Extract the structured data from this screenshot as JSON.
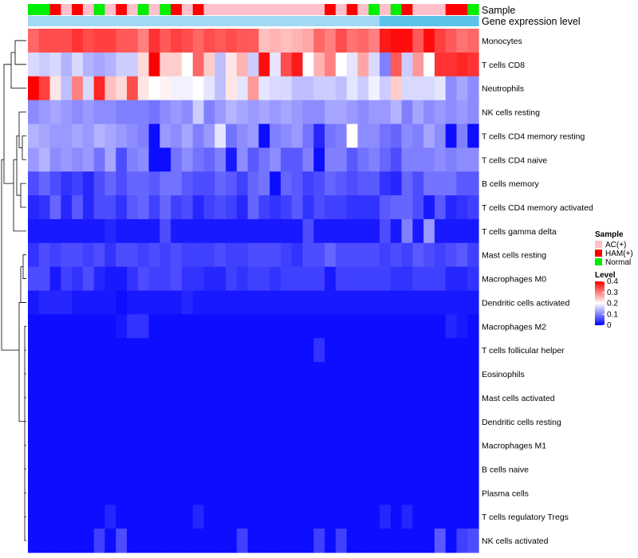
{
  "chart_data": {
    "type": "heatmap",
    "rows": [
      "Monocytes",
      "T cells CD8",
      "Neutrophils",
      "NK cells resting",
      "T cells CD4 memory resting",
      "T cells CD4 naive",
      "B cells memory",
      "T cells CD4 memory activated",
      "T cells gamma delta",
      "Mast cells resting",
      "Macrophages M0",
      "Dendritic cells activated",
      "Macrophages M2",
      "T cells follicular helper",
      "Eosinophils",
      "Mast cells activated",
      "Dendritic cells resting",
      "Macrophages M1",
      "B cells naive",
      "Plasma cells",
      "T cells regulatory  Tregs",
      "NK cells activated"
    ],
    "annotations": [
      {
        "name": "Sample"
      },
      {
        "name": "Gene expression level"
      }
    ],
    "sample_groups": [
      "N",
      "N",
      "H",
      "A",
      "H",
      "A",
      "N",
      "A",
      "H",
      "A",
      "N",
      "A",
      "N",
      "H",
      "A",
      "H",
      "A",
      "A",
      "A",
      "A",
      "A",
      "A",
      "A",
      "A",
      "A",
      "A",
      "A",
      "H",
      "A",
      "H",
      "A",
      "N",
      "A",
      "N",
      "H",
      "A",
      "A",
      "A",
      "H",
      "H",
      "N"
    ],
    "gene_level_groups": [
      0,
      0,
      0,
      0,
      0,
      0,
      0,
      0,
      0,
      0,
      0,
      0,
      0,
      0,
      0,
      0,
      0,
      0,
      0,
      0,
      0,
      0,
      0,
      0,
      0,
      0,
      0,
      0,
      0,
      0,
      0,
      0,
      1,
      1,
      1,
      1,
      1,
      1,
      1,
      1,
      1
    ],
    "values": [
      [
        0.32,
        0.34,
        0.34,
        0.34,
        0.36,
        0.34,
        0.35,
        0.35,
        0.33,
        0.33,
        0.3,
        0.36,
        0.33,
        0.35,
        0.34,
        0.32,
        0.34,
        0.33,
        0.34,
        0.33,
        0.33,
        0.25,
        0.26,
        0.25,
        0.26,
        0.27,
        0.32,
        0.3,
        0.34,
        0.31,
        0.32,
        0.3,
        0.38,
        0.39,
        0.39,
        0.33,
        0.39,
        0.35,
        0.33,
        0.31,
        0.32
      ],
      [
        0.17,
        0.16,
        0.17,
        0.14,
        0.17,
        0.14,
        0.13,
        0.14,
        0.16,
        0.16,
        0.23,
        0.4,
        0.24,
        0.24,
        0.2,
        0.32,
        0.24,
        0.15,
        0.22,
        0.26,
        0.16,
        0.39,
        0.18,
        0.34,
        0.38,
        0.2,
        0.26,
        0.3,
        0.2,
        0.18,
        0.27,
        0.17,
        0.1,
        0.33,
        0.16,
        0.28,
        0.2,
        0.36,
        0.36,
        0.37,
        0.36
      ],
      [
        0.4,
        0.35,
        0.22,
        0.15,
        0.3,
        0.17,
        0.37,
        0.25,
        0.23,
        0.34,
        0.22,
        0.2,
        0.21,
        0.19,
        0.19,
        0.2,
        0.18,
        0.15,
        0.22,
        0.18,
        0.28,
        0.18,
        0.17,
        0.17,
        0.15,
        0.15,
        0.16,
        0.16,
        0.15,
        0.18,
        0.16,
        0.19,
        0.16,
        0.24,
        0.17,
        0.17,
        0.17,
        0.18,
        0.11,
        0.13,
        0.11
      ],
      [
        0.11,
        0.12,
        0.13,
        0.12,
        0.11,
        0.12,
        0.11,
        0.11,
        0.1,
        0.1,
        0.1,
        0.09,
        0.11,
        0.12,
        0.11,
        0.16,
        0.1,
        0.12,
        0.14,
        0.13,
        0.12,
        0.13,
        0.12,
        0.13,
        0.12,
        0.11,
        0.11,
        0.13,
        0.13,
        0.12,
        0.11,
        0.12,
        0.12,
        0.14,
        0.1,
        0.13,
        0.11,
        0.12,
        0.11,
        0.12,
        0.11
      ],
      [
        0.14,
        0.13,
        0.12,
        0.12,
        0.13,
        0.12,
        0.14,
        0.13,
        0.12,
        0.11,
        0.1,
        0.01,
        0.12,
        0.11,
        0.13,
        0.1,
        0.12,
        0.18,
        0.09,
        0.11,
        0.12,
        0.01,
        0.1,
        0.11,
        0.12,
        0.09,
        0.03,
        0.09,
        0.1,
        0.2,
        0.11,
        0.11,
        0.09,
        0.08,
        0.11,
        0.1,
        0.13,
        0.11,
        0.01,
        0.1,
        0.01
      ],
      [
        0.12,
        0.14,
        0.11,
        0.12,
        0.11,
        0.12,
        0.09,
        0.13,
        0.06,
        0.1,
        0.11,
        0.01,
        0.01,
        0.09,
        0.11,
        0.09,
        0.08,
        0.1,
        0.02,
        0.11,
        0.07,
        0.09,
        0.11,
        0.07,
        0.07,
        0.1,
        0.01,
        0.1,
        0.1,
        0.07,
        0.09,
        0.1,
        0.08,
        0.06,
        0.1,
        0.1,
        0.1,
        0.11,
        0.1,
        0.11,
        0.11
      ],
      [
        0.06,
        0.08,
        0.06,
        0.04,
        0.05,
        0.03,
        0.06,
        0.08,
        0.06,
        0.08,
        0.08,
        0.07,
        0.09,
        0.09,
        0.07,
        0.06,
        0.06,
        0.08,
        0.07,
        0.05,
        0.08,
        0.09,
        0.01,
        0.08,
        0.07,
        0.05,
        0.06,
        0.08,
        0.07,
        0.06,
        0.07,
        0.07,
        0.04,
        0.03,
        0.08,
        0.06,
        0.09,
        0.09,
        0.09,
        0.07,
        0.07
      ],
      [
        0.03,
        0.04,
        0.08,
        0.03,
        0.07,
        0.03,
        0.06,
        0.06,
        0.04,
        0.07,
        0.08,
        0.05,
        0.08,
        0.05,
        0.06,
        0.03,
        0.05,
        0.06,
        0.05,
        0.03,
        0.08,
        0.05,
        0.04,
        0.05,
        0.07,
        0.04,
        0.06,
        0.05,
        0.05,
        0.04,
        0.04,
        0.04,
        0.07,
        0.08,
        0.08,
        0.06,
        0.02,
        0.07,
        0.03,
        0.04,
        0.05
      ],
      [
        0.02,
        0.02,
        0.02,
        0.02,
        0.02,
        0.02,
        0.02,
        0.03,
        0.02,
        0.02,
        0.02,
        0.02,
        0.06,
        0.02,
        0.02,
        0.02,
        0.02,
        0.02,
        0.02,
        0.02,
        0.02,
        0.02,
        0.02,
        0.02,
        0.02,
        0.06,
        0.02,
        0.02,
        0.02,
        0.02,
        0.02,
        0.02,
        0.06,
        0.02,
        0.1,
        0.02,
        0.12,
        0.02,
        0.02,
        0.02,
        0.02
      ],
      [
        0.04,
        0.06,
        0.05,
        0.06,
        0.06,
        0.05,
        0.06,
        0.04,
        0.06,
        0.06,
        0.05,
        0.06,
        0.05,
        0.06,
        0.05,
        0.05,
        0.05,
        0.06,
        0.05,
        0.05,
        0.06,
        0.06,
        0.06,
        0.05,
        0.04,
        0.06,
        0.06,
        0.08,
        0.06,
        0.06,
        0.06,
        0.06,
        0.05,
        0.06,
        0.05,
        0.07,
        0.06,
        0.05,
        0.06,
        0.07,
        0.05
      ],
      [
        0.06,
        0.06,
        0.02,
        0.05,
        0.04,
        0.06,
        0.03,
        0.02,
        0.02,
        0.04,
        0.06,
        0.05,
        0.05,
        0.06,
        0.04,
        0.04,
        0.03,
        0.03,
        0.05,
        0.04,
        0.05,
        0.05,
        0.04,
        0.05,
        0.05,
        0.05,
        0.05,
        0.02,
        0.05,
        0.05,
        0.05,
        0.05,
        0.05,
        0.04,
        0.04,
        0.05,
        0.05,
        0.05,
        0.03,
        0.03,
        0.04
      ],
      [
        0.02,
        0.03,
        0.03,
        0.03,
        0.02,
        0.02,
        0.02,
        0.02,
        0.01,
        0.02,
        0.02,
        0.02,
        0.02,
        0.02,
        0.03,
        0.02,
        0.02,
        0.02,
        0.02,
        0.02,
        0.02,
        0.02,
        0.02,
        0.02,
        0.02,
        0.02,
        0.02,
        0.02,
        0.02,
        0.02,
        0.02,
        0.02,
        0.02,
        0.02,
        0.02,
        0.02,
        0.02,
        0.02,
        0.02,
        0.02,
        0.02
      ],
      [
        0.01,
        0.01,
        0.01,
        0.01,
        0.01,
        0.01,
        0.01,
        0.01,
        0.02,
        0.04,
        0.04,
        0.01,
        0.01,
        0.01,
        0.01,
        0.01,
        0.01,
        0.01,
        0.01,
        0.01,
        0.01,
        0.01,
        0.01,
        0.01,
        0.01,
        0.01,
        0.01,
        0.01,
        0.01,
        0.01,
        0.01,
        0.01,
        0.01,
        0.01,
        0.01,
        0.01,
        0.01,
        0.01,
        0.03,
        0.02,
        0.01
      ],
      [
        0.01,
        0.01,
        0.01,
        0.01,
        0.01,
        0.01,
        0.01,
        0.01,
        0.01,
        0.01,
        0.01,
        0.01,
        0.01,
        0.01,
        0.01,
        0.01,
        0.01,
        0.01,
        0.01,
        0.01,
        0.01,
        0.01,
        0.01,
        0.01,
        0.01,
        0.01,
        0.04,
        0.01,
        0.01,
        0.01,
        0.01,
        0.01,
        0.01,
        0.01,
        0.01,
        0.01,
        0.01,
        0.01,
        0.01,
        0.01,
        0.01
      ],
      [
        0.01,
        0.01,
        0.01,
        0.01,
        0.01,
        0.01,
        0.01,
        0.01,
        0.01,
        0.01,
        0.01,
        0.01,
        0.01,
        0.01,
        0.01,
        0.01,
        0.01,
        0.01,
        0.01,
        0.01,
        0.01,
        0.01,
        0.01,
        0.01,
        0.01,
        0.01,
        0.01,
        0.01,
        0.01,
        0.01,
        0.01,
        0.01,
        0.01,
        0.01,
        0.01,
        0.01,
        0.01,
        0.01,
        0.01,
        0.01,
        0.01
      ],
      [
        0.01,
        0.01,
        0.01,
        0.01,
        0.01,
        0.01,
        0.01,
        0.01,
        0.01,
        0.01,
        0.01,
        0.01,
        0.01,
        0.01,
        0.01,
        0.01,
        0.01,
        0.01,
        0.01,
        0.01,
        0.01,
        0.01,
        0.01,
        0.01,
        0.01,
        0.01,
        0.01,
        0.01,
        0.01,
        0.01,
        0.01,
        0.01,
        0.01,
        0.01,
        0.01,
        0.01,
        0.01,
        0.01,
        0.01,
        0.01,
        0.01
      ],
      [
        0.01,
        0.01,
        0.01,
        0.01,
        0.01,
        0.01,
        0.01,
        0.01,
        0.01,
        0.01,
        0.01,
        0.01,
        0.01,
        0.01,
        0.01,
        0.01,
        0.01,
        0.01,
        0.01,
        0.01,
        0.01,
        0.01,
        0.01,
        0.01,
        0.01,
        0.01,
        0.01,
        0.01,
        0.01,
        0.01,
        0.01,
        0.01,
        0.01,
        0.01,
        0.01,
        0.01,
        0.01,
        0.01,
        0.01,
        0.01,
        0.01
      ],
      [
        0.01,
        0.01,
        0.01,
        0.01,
        0.01,
        0.01,
        0.01,
        0.01,
        0.01,
        0.01,
        0.01,
        0.01,
        0.01,
        0.01,
        0.01,
        0.01,
        0.01,
        0.01,
        0.01,
        0.01,
        0.01,
        0.01,
        0.01,
        0.01,
        0.01,
        0.01,
        0.01,
        0.01,
        0.01,
        0.01,
        0.01,
        0.01,
        0.01,
        0.01,
        0.01,
        0.01,
        0.01,
        0.01,
        0.01,
        0.01,
        0.01
      ],
      [
        0.01,
        0.01,
        0.01,
        0.01,
        0.01,
        0.01,
        0.01,
        0.01,
        0.01,
        0.01,
        0.01,
        0.01,
        0.01,
        0.01,
        0.01,
        0.01,
        0.01,
        0.01,
        0.01,
        0.01,
        0.01,
        0.01,
        0.01,
        0.01,
        0.01,
        0.01,
        0.01,
        0.01,
        0.01,
        0.01,
        0.01,
        0.01,
        0.01,
        0.01,
        0.01,
        0.01,
        0.01,
        0.01,
        0.01,
        0.01,
        0.01
      ],
      [
        0.01,
        0.01,
        0.01,
        0.01,
        0.01,
        0.01,
        0.01,
        0.01,
        0.01,
        0.01,
        0.01,
        0.01,
        0.01,
        0.01,
        0.01,
        0.01,
        0.01,
        0.01,
        0.01,
        0.01,
        0.01,
        0.01,
        0.01,
        0.01,
        0.01,
        0.01,
        0.01,
        0.01,
        0.01,
        0.01,
        0.01,
        0.01,
        0.01,
        0.01,
        0.01,
        0.01,
        0.01,
        0.01,
        0.01,
        0.01,
        0.01
      ],
      [
        0.01,
        0.01,
        0.01,
        0.01,
        0.01,
        0.01,
        0.01,
        0.03,
        0.01,
        0.01,
        0.01,
        0.01,
        0.01,
        0.01,
        0.01,
        0.03,
        0.01,
        0.01,
        0.01,
        0.01,
        0.01,
        0.01,
        0.01,
        0.01,
        0.01,
        0.01,
        0.01,
        0.01,
        0.01,
        0.01,
        0.01,
        0.01,
        0.03,
        0.01,
        0.03,
        0.01,
        0.01,
        0.01,
        0.01,
        0.01,
        0.01
      ],
      [
        0.01,
        0.01,
        0.01,
        0.01,
        0.01,
        0.01,
        0.05,
        0.01,
        0.06,
        0.01,
        0.01,
        0.01,
        0.01,
        0.01,
        0.01,
        0.01,
        0.01,
        0.01,
        0.01,
        0.05,
        0.01,
        0.01,
        0.01,
        0.01,
        0.01,
        0.01,
        0.05,
        0.01,
        0.05,
        0.01,
        0.01,
        0.01,
        0.01,
        0.01,
        0.01,
        0.01,
        0.01,
        0.07,
        0.01,
        0.05,
        0.06
      ]
    ],
    "color_scale": {
      "min": 0,
      "max": 0.4,
      "low": "#0000ff",
      "mid": "#ffffff",
      "high": "#ff0000",
      "mid_value": 0.2
    },
    "legend": {
      "sample": {
        "title": "Sample",
        "entries": [
          {
            "label": "AC(+)",
            "color": "#ffc0cb"
          },
          {
            "label": "HAM(+)",
            "color": "#ff0000"
          },
          {
            "label": "Normal",
            "color": "#00ee00"
          }
        ]
      },
      "level": {
        "title": "Level",
        "ticks": [
          0.4,
          0.3,
          0.2,
          0.1,
          0
        ]
      }
    },
    "gene_level_colors": [
      "#a3d8f4",
      "#5bc3ea"
    ],
    "row_dendrogram": true
  }
}
